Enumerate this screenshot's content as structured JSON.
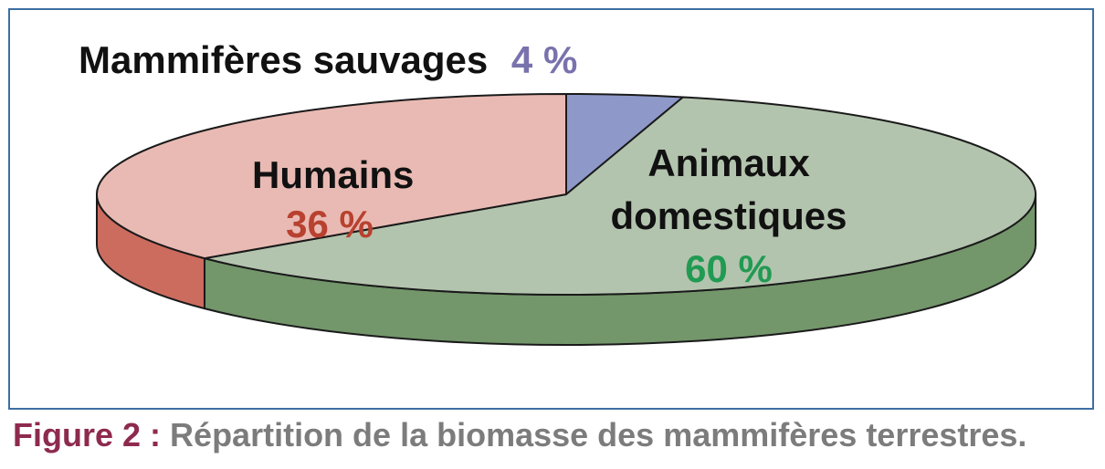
{
  "chart_data": {
    "type": "pie",
    "style": "3d",
    "slices": [
      {
        "label": "Animaux domestiques",
        "label_lines": [
          "Animaux",
          "domestiques"
        ],
        "value": 60,
        "value_text": "60 %",
        "color": "#b3c4ae",
        "side_color": "#73966b",
        "value_color": "#219a52"
      },
      {
        "label": "Humains",
        "label_lines": [
          "Humains"
        ],
        "value": 36,
        "value_text": "36 %",
        "color": "#e9bab3",
        "side_color": "#cc6c5f",
        "value_color": "#b8412f"
      },
      {
        "label": "Mammifères sauvages",
        "label_lines": [
          "Mammifères sauvages"
        ],
        "value": 4,
        "value_text": "4 %",
        "color": "#8e99c9",
        "side_color": "#6e78a8",
        "value_color": "#7872ad"
      }
    ]
  },
  "caption": {
    "figure_label": "Figure 2 :",
    "text": "Répartition de la biomasse des mammifères terrestres."
  },
  "colors": {
    "frame_border": "#3d6fa3",
    "figure_label": "#8e2a4e",
    "caption_text": "#7c7c7c",
    "label_text": "#111111"
  }
}
